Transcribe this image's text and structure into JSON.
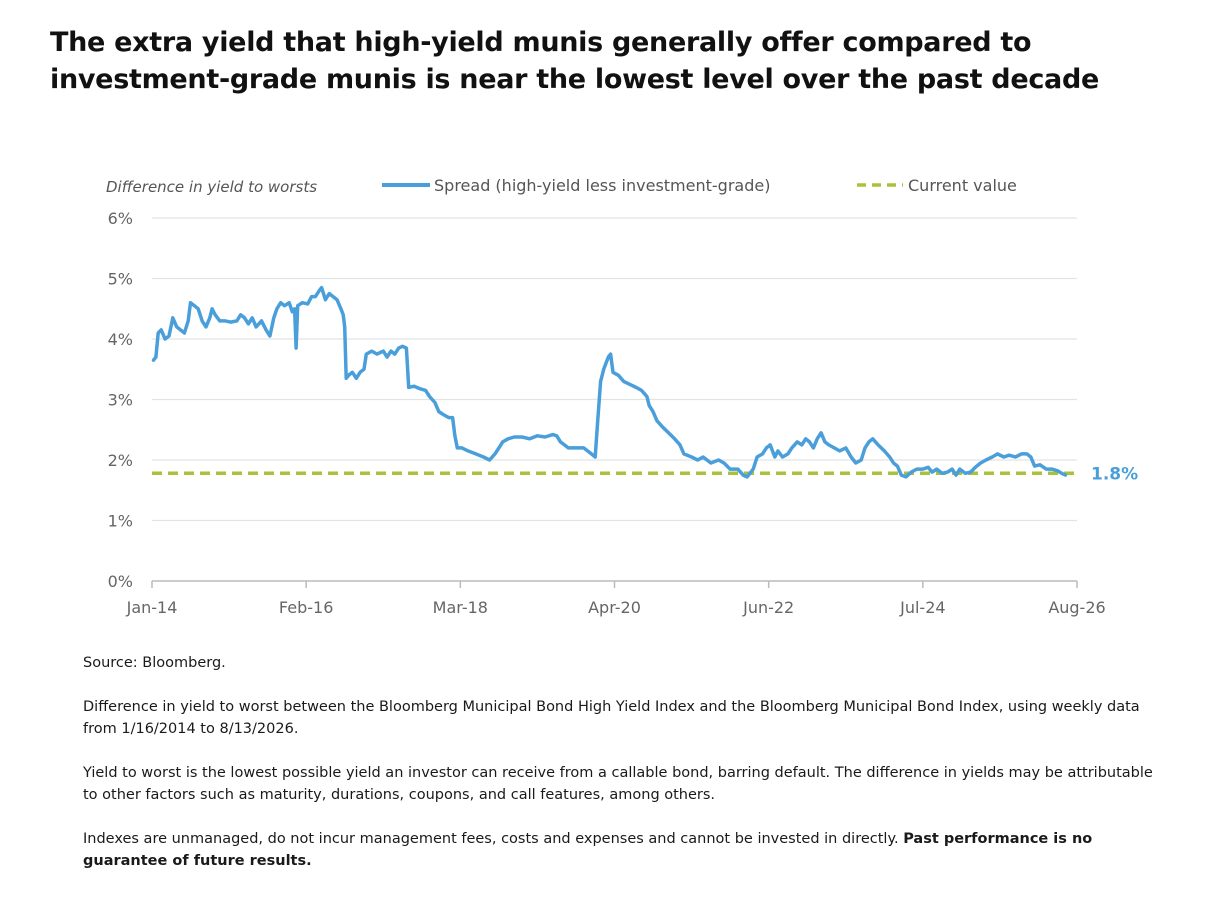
{
  "headline": "The extra yield that high-yield munis generally offer compared to investment-grade munis is near the lowest level over the past decade",
  "chart_data": {
    "type": "line",
    "ylabel": "Difference in yield to worsts",
    "ylim": [
      0,
      6
    ],
    "yticks": [
      "0%",
      "1%",
      "2%",
      "3%",
      "4%",
      "5%",
      "6%"
    ],
    "xlim": [
      2014.0,
      2026.0
    ],
    "xticks": [
      {
        "label": "Jan-14",
        "x": 2014.0
      },
      {
        "label": "Feb-16",
        "x": 2016.0
      },
      {
        "label": "Mar-18",
        "x": 2018.0
      },
      {
        "label": "Apr-20",
        "x": 2020.0
      },
      {
        "label": "Jun-22",
        "x": 2022.0
      },
      {
        "label": "Jul-24",
        "x": 2024.0
      },
      {
        "label": "Aug-26",
        "x": 2026.0
      }
    ],
    "grid": "horizontal",
    "legend_placement": "top",
    "series": [
      {
        "name": "Spread (high-yield less investment-grade)",
        "color": "#4a9fdb",
        "points": [
          [
            2014.02,
            3.65
          ],
          [
            2014.05,
            3.7
          ],
          [
            2014.08,
            4.1
          ],
          [
            2014.12,
            4.15
          ],
          [
            2014.17,
            4.0
          ],
          [
            2014.22,
            4.05
          ],
          [
            2014.27,
            4.35
          ],
          [
            2014.32,
            4.2
          ],
          [
            2014.37,
            4.15
          ],
          [
            2014.42,
            4.1
          ],
          [
            2014.47,
            4.3
          ],
          [
            2014.5,
            4.6
          ],
          [
            2014.55,
            4.55
          ],
          [
            2014.6,
            4.5
          ],
          [
            2014.65,
            4.3
          ],
          [
            2014.7,
            4.2
          ],
          [
            2014.75,
            4.35
          ],
          [
            2014.78,
            4.5
          ],
          [
            2014.82,
            4.4
          ],
          [
            2014.88,
            4.3
          ],
          [
            2014.95,
            4.3
          ],
          [
            2015.02,
            4.28
          ],
          [
            2015.1,
            4.3
          ],
          [
            2015.15,
            4.4
          ],
          [
            2015.2,
            4.35
          ],
          [
            2015.25,
            4.25
          ],
          [
            2015.3,
            4.35
          ],
          [
            2015.35,
            4.2
          ],
          [
            2015.42,
            4.3
          ],
          [
            2015.48,
            4.15
          ],
          [
            2015.53,
            4.05
          ],
          [
            2015.58,
            4.35
          ],
          [
            2015.62,
            4.5
          ],
          [
            2015.67,
            4.6
          ],
          [
            2015.72,
            4.55
          ],
          [
            2015.78,
            4.6
          ],
          [
            2015.82,
            4.45
          ],
          [
            2015.85,
            4.5
          ],
          [
            2015.87,
            3.85
          ],
          [
            2015.89,
            4.55
          ],
          [
            2015.95,
            4.6
          ],
          [
            2016.02,
            4.58
          ],
          [
            2016.07,
            4.7
          ],
          [
            2016.12,
            4.7
          ],
          [
            2016.17,
            4.8
          ],
          [
            2016.2,
            4.85
          ],
          [
            2016.25,
            4.65
          ],
          [
            2016.3,
            4.75
          ],
          [
            2016.35,
            4.7
          ],
          [
            2016.4,
            4.65
          ],
          [
            2016.45,
            4.5
          ],
          [
            2016.48,
            4.4
          ],
          [
            2016.5,
            4.2
          ],
          [
            2016.52,
            3.35
          ],
          [
            2016.55,
            3.4
          ],
          [
            2016.6,
            3.45
          ],
          [
            2016.65,
            3.35
          ],
          [
            2016.7,
            3.45
          ],
          [
            2016.75,
            3.5
          ],
          [
            2016.78,
            3.75
          ],
          [
            2016.85,
            3.8
          ],
          [
            2016.92,
            3.75
          ],
          [
            2017.0,
            3.8
          ],
          [
            2017.05,
            3.7
          ],
          [
            2017.1,
            3.8
          ],
          [
            2017.15,
            3.75
          ],
          [
            2017.2,
            3.85
          ],
          [
            2017.25,
            3.88
          ],
          [
            2017.3,
            3.85
          ],
          [
            2017.33,
            3.2
          ],
          [
            2017.4,
            3.22
          ],
          [
            2017.47,
            3.18
          ],
          [
            2017.55,
            3.15
          ],
          [
            2017.6,
            3.05
          ],
          [
            2017.67,
            2.95
          ],
          [
            2017.72,
            2.8
          ],
          [
            2017.78,
            2.75
          ],
          [
            2017.85,
            2.7
          ],
          [
            2017.9,
            2.7
          ],
          [
            2017.93,
            2.4
          ],
          [
            2017.96,
            2.2
          ],
          [
            2018.02,
            2.2
          ],
          [
            2018.1,
            2.15
          ],
          [
            2018.2,
            2.1
          ],
          [
            2018.3,
            2.05
          ],
          [
            2018.38,
            2.0
          ],
          [
            2018.45,
            2.1
          ],
          [
            2018.5,
            2.2
          ],
          [
            2018.55,
            2.3
          ],
          [
            2018.62,
            2.35
          ],
          [
            2018.7,
            2.38
          ],
          [
            2018.8,
            2.38
          ],
          [
            2018.9,
            2.35
          ],
          [
            2019.0,
            2.4
          ],
          [
            2019.1,
            2.38
          ],
          [
            2019.2,
            2.42
          ],
          [
            2019.25,
            2.4
          ],
          [
            2019.3,
            2.3
          ],
          [
            2019.35,
            2.25
          ],
          [
            2019.4,
            2.2
          ],
          [
            2019.5,
            2.2
          ],
          [
            2019.6,
            2.2
          ],
          [
            2019.7,
            2.1
          ],
          [
            2019.75,
            2.05
          ],
          [
            2019.78,
            2.6
          ],
          [
            2019.82,
            3.3
          ],
          [
            2019.86,
            3.5
          ],
          [
            2019.92,
            3.7
          ],
          [
            2019.95,
            3.75
          ],
          [
            2019.98,
            3.45
          ],
          [
            2020.05,
            3.4
          ],
          [
            2020.12,
            3.3
          ],
          [
            2020.2,
            3.25
          ],
          [
            2020.28,
            3.2
          ],
          [
            2020.35,
            3.15
          ],
          [
            2020.42,
            3.05
          ],
          [
            2020.45,
            2.9
          ],
          [
            2020.5,
            2.8
          ],
          [
            2020.55,
            2.65
          ],
          [
            2020.62,
            2.55
          ],
          [
            2020.7,
            2.45
          ],
          [
            2020.78,
            2.35
          ],
          [
            2020.85,
            2.25
          ],
          [
            2020.9,
            2.1
          ],
          [
            2021.0,
            2.05
          ],
          [
            2021.08,
            2.0
          ],
          [
            2021.15,
            2.05
          ],
          [
            2021.25,
            1.95
          ],
          [
            2021.35,
            2.0
          ],
          [
            2021.42,
            1.95
          ],
          [
            2021.5,
            1.85
          ],
          [
            2021.6,
            1.85
          ],
          [
            2021.67,
            1.75
          ],
          [
            2021.72,
            1.72
          ],
          [
            2021.8,
            1.85
          ],
          [
            2021.85,
            2.05
          ],
          [
            2021.92,
            2.1
          ],
          [
            2021.97,
            2.2
          ],
          [
            2022.02,
            2.25
          ],
          [
            2022.08,
            2.05
          ],
          [
            2022.12,
            2.15
          ],
          [
            2022.18,
            2.05
          ],
          [
            2022.25,
            2.1
          ],
          [
            2022.3,
            2.2
          ],
          [
            2022.37,
            2.3
          ],
          [
            2022.43,
            2.25
          ],
          [
            2022.48,
            2.35
          ],
          [
            2022.53,
            2.3
          ],
          [
            2022.58,
            2.2
          ],
          [
            2022.63,
            2.35
          ],
          [
            2022.68,
            2.45
          ],
          [
            2022.73,
            2.3
          ],
          [
            2022.78,
            2.25
          ],
          [
            2022.85,
            2.2
          ],
          [
            2022.92,
            2.15
          ],
          [
            2023.0,
            2.2
          ],
          [
            2023.07,
            2.05
          ],
          [
            2023.13,
            1.95
          ],
          [
            2023.2,
            2.0
          ],
          [
            2023.25,
            2.2
          ],
          [
            2023.3,
            2.3
          ],
          [
            2023.35,
            2.35
          ],
          [
            2023.42,
            2.25
          ],
          [
            2023.5,
            2.15
          ],
          [
            2023.57,
            2.05
          ],
          [
            2023.62,
            1.95
          ],
          [
            2023.67,
            1.9
          ],
          [
            2023.72,
            1.75
          ],
          [
            2023.78,
            1.72
          ],
          [
            2023.85,
            1.8
          ],
          [
            2023.92,
            1.85
          ],
          [
            2024.0,
            1.85
          ],
          [
            2024.07,
            1.88
          ],
          [
            2024.12,
            1.8
          ],
          [
            2024.18,
            1.85
          ],
          [
            2024.25,
            1.78
          ],
          [
            2024.32,
            1.8
          ],
          [
            2024.38,
            1.85
          ],
          [
            2024.43,
            1.75
          ],
          [
            2024.48,
            1.85
          ],
          [
            2024.55,
            1.78
          ],
          [
            2024.62,
            1.8
          ],
          [
            2024.68,
            1.88
          ],
          [
            2024.75,
            1.95
          ],
          [
            2024.82,
            2.0
          ],
          [
            2024.9,
            2.05
          ],
          [
            2024.97,
            2.1
          ],
          [
            2025.05,
            2.05
          ],
          [
            2025.12,
            2.08
          ],
          [
            2025.2,
            2.05
          ],
          [
            2025.28,
            2.1
          ],
          [
            2025.35,
            2.1
          ],
          [
            2025.4,
            2.05
          ],
          [
            2025.45,
            1.9
          ],
          [
            2025.52,
            1.92
          ],
          [
            2025.6,
            1.85
          ],
          [
            2025.68,
            1.85
          ],
          [
            2025.75,
            1.82
          ],
          [
            2025.8,
            1.78
          ],
          [
            2025.85,
            1.75
          ]
        ]
      },
      {
        "name": "Current value",
        "color": "#a8c23a",
        "style": "dashed",
        "value": 1.78,
        "label": "1.8%"
      }
    ]
  },
  "notes": {
    "source": "Source: Bloomberg.",
    "p1": "Difference in yield to worst between the Bloomberg Municipal Bond High Yield Index and the Bloomberg Municipal Bond Index, using weekly data from 1/16/2014 to 8/13/2026.",
    "p2": "Yield to worst is the lowest possible yield an investor can receive from a callable bond, barring default. The difference in yields may be attributable to other factors such as maturity, durations, coupons, and call features, among others.",
    "p3": "Indexes are unmanaged, do not incur management fees, costs and expenses and cannot be invested in directly. ",
    "p3_bold": "Past performance is no guarantee of future results."
  }
}
